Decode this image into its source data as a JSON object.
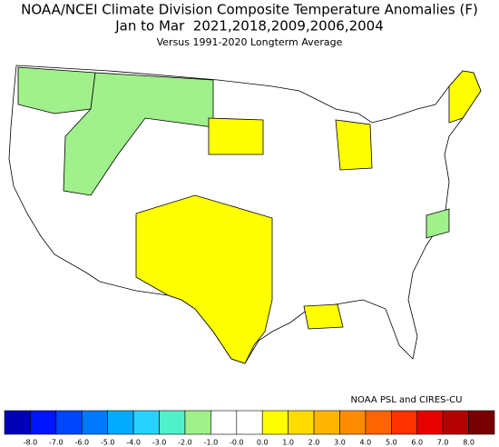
{
  "title": "NOAA/NCEI Climate Division Composite Temperature Anomalies (F)",
  "subtitle": "Jan to Mar  2021,2018,2009,2006,2004",
  "baseline_note": "Versus 1991-2020 Longterm Average",
  "credit": "NOAA PSL and CIRES-CU",
  "colorbar": {
    "bounds": [
      {
        "value": -8,
        "label": "-8.0"
      },
      {
        "value": -7,
        "label": "-7.0"
      },
      {
        "value": -6,
        "label": "-6.0"
      },
      {
        "value": -5,
        "label": "-5.0"
      },
      {
        "value": -4,
        "label": "-4.0"
      },
      {
        "value": -3,
        "label": "-3.0"
      },
      {
        "value": -2,
        "label": "-2.0"
      },
      {
        "value": -1,
        "label": "-1.0"
      },
      {
        "value": 0,
        "label": "-0.0"
      },
      {
        "value": 0,
        "label": "0.0"
      },
      {
        "value": 1,
        "label": "1.0"
      },
      {
        "value": 2,
        "label": "2.0"
      },
      {
        "value": 3,
        "label": "3.0"
      },
      {
        "value": 4,
        "label": "4.0"
      },
      {
        "value": 5,
        "label": "5.0"
      },
      {
        "value": 6,
        "label": "6.0"
      },
      {
        "value": 7,
        "label": "7.0"
      },
      {
        "value": 8,
        "label": "8.0"
      }
    ],
    "colors": [
      "#0000b4",
      "#0014ff",
      "#0046ff",
      "#0078ff",
      "#00aaff",
      "#28d2ff",
      "#50f0c8",
      "#a0f08c",
      "#ffffff",
      "#ffffff",
      "#ffff00",
      "#ffdc00",
      "#ffb400",
      "#ff8c00",
      "#ff6400",
      "#ff3200",
      "#e60000",
      "#b40000",
      "#780000"
    ]
  }
}
